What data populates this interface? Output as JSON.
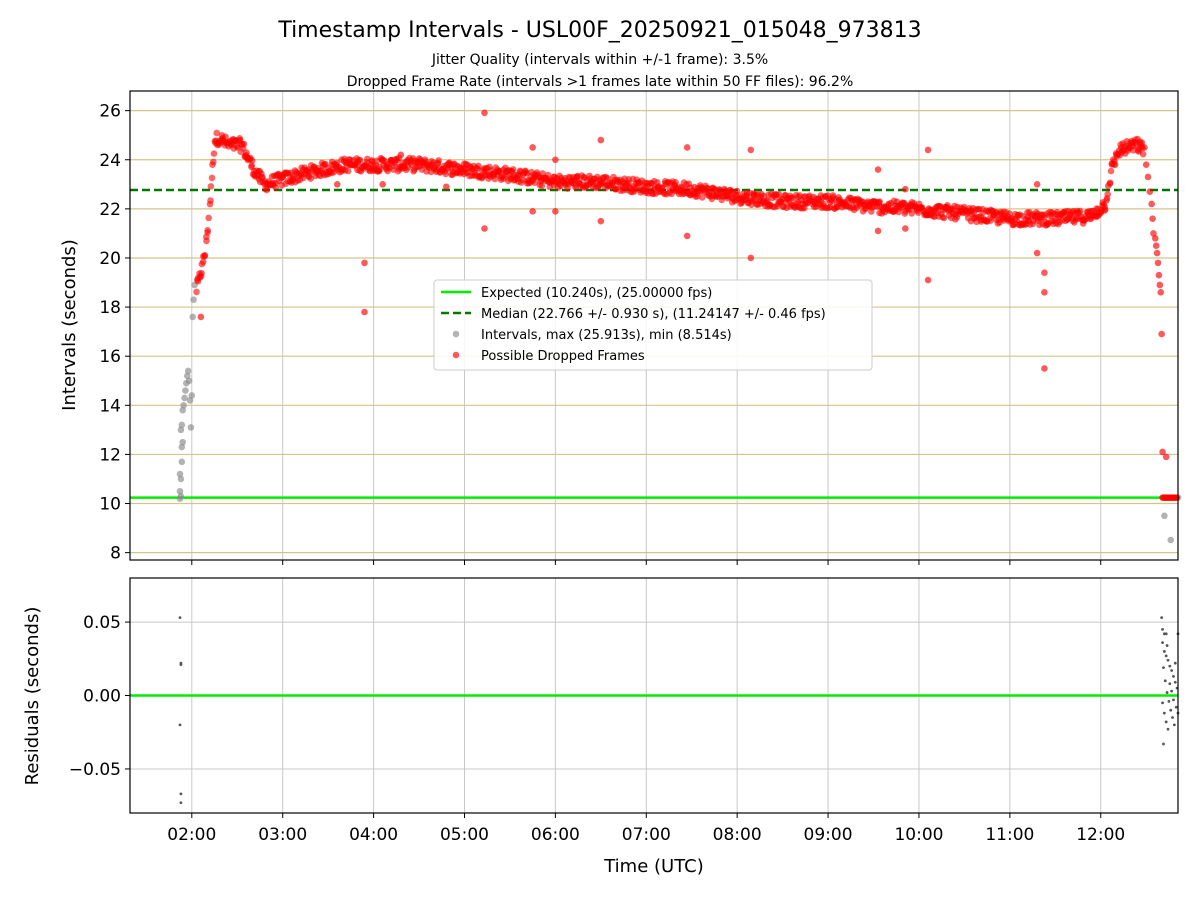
{
  "chart_data": {
    "type": "scatter",
    "title": "Timestamp Intervals - USL00F_20250921_015048_973813",
    "subtitles": [
      "Jitter Quality (intervals within +/-1 frame): 3.5%",
      "Dropped Frame Rate (intervals >1 frames late within 50 FF files): 96.2%"
    ],
    "xlabel": "Time (UTC)",
    "x_ticks": [
      "02:00",
      "03:00",
      "04:00",
      "05:00",
      "06:00",
      "07:00",
      "08:00",
      "09:00",
      "10:00",
      "11:00",
      "12:00"
    ],
    "xlim_hours": [
      1.32,
      12.85
    ],
    "top_panel": {
      "ylabel": "Intervals (seconds)",
      "ylim": [
        7.7,
        26.8
      ],
      "y_ticks": [
        "8",
        "10",
        "12",
        "14",
        "16",
        "18",
        "20",
        "22",
        "24",
        "26"
      ],
      "expected_interval": 10.24,
      "median_interval": 22.766,
      "legend": [
        {
          "label": "Expected (10.240s), (25.00000 fps)",
          "kind": "solid-line",
          "color": "#00ee00"
        },
        {
          "label": "Median (22.766 +/- 0.930 s), (11.24147 +/- 0.46 fps)",
          "kind": "dashed-line",
          "color": "#007700"
        },
        {
          "label": "Intervals, max (25.913s), min (8.514s)",
          "kind": "marker",
          "color": "#8a8a8a"
        },
        {
          "label": "Possible Dropped Frames",
          "kind": "marker",
          "color": "#ff0000"
        }
      ],
      "trend_points_hours_seconds": [
        [
          2.05,
          18.7
        ],
        [
          2.1,
          19.4
        ],
        [
          2.15,
          20.3
        ],
        [
          2.2,
          22.2
        ],
        [
          2.25,
          24.8
        ],
        [
          2.3,
          24.9
        ],
        [
          2.4,
          24.6
        ],
        [
          2.5,
          24.6
        ],
        [
          2.55,
          24.6
        ],
        [
          2.6,
          24.2
        ],
        [
          2.7,
          23.5
        ],
        [
          2.8,
          23.0
        ],
        [
          3.0,
          23.2
        ],
        [
          3.3,
          23.5
        ],
        [
          3.7,
          23.8
        ],
        [
          4.0,
          23.8
        ],
        [
          4.5,
          23.8
        ],
        [
          5.0,
          23.6
        ],
        [
          5.5,
          23.4
        ],
        [
          6.0,
          23.1
        ],
        [
          6.5,
          23.1
        ],
        [
          7.0,
          22.9
        ],
        [
          7.5,
          22.8
        ],
        [
          8.0,
          22.5
        ],
        [
          8.5,
          22.3
        ],
        [
          9.0,
          22.3
        ],
        [
          9.5,
          22.1
        ],
        [
          10.0,
          22.0
        ],
        [
          10.5,
          21.8
        ],
        [
          11.0,
          21.6
        ],
        [
          11.5,
          21.6
        ],
        [
          11.9,
          21.7
        ],
        [
          12.05,
          22.2
        ],
        [
          12.12,
          23.6
        ],
        [
          12.2,
          24.4
        ],
        [
          12.3,
          24.5
        ],
        [
          12.4,
          24.6
        ],
        [
          12.48,
          24.4
        ]
      ],
      "gray_points_hours_seconds": [
        [
          1.87,
          10.2
        ],
        [
          1.88,
          10.3
        ],
        [
          1.87,
          10.5
        ],
        [
          1.88,
          11.0
        ],
        [
          1.87,
          11.2
        ],
        [
          1.89,
          11.7
        ],
        [
          1.89,
          12.3
        ],
        [
          1.9,
          12.5
        ],
        [
          1.88,
          13.0
        ],
        [
          1.89,
          13.2
        ],
        [
          1.9,
          13.8
        ],
        [
          1.91,
          14.0
        ],
        [
          1.92,
          14.3
        ],
        [
          1.93,
          14.6
        ],
        [
          1.94,
          14.9
        ],
        [
          1.95,
          15.2
        ],
        [
          1.96,
          15.4
        ],
        [
          1.97,
          15.0
        ],
        [
          1.98,
          14.2
        ],
        [
          1.99,
          13.1
        ],
        [
          2.0,
          14.4
        ],
        [
          2.01,
          17.6
        ],
        [
          2.02,
          18.3
        ],
        [
          2.03,
          18.9
        ],
        [
          12.7,
          9.5
        ],
        [
          12.77,
          8.514
        ],
        [
          12.85,
          10.24
        ]
      ],
      "red_outliers_hours_seconds": [
        [
          2.1,
          17.6
        ],
        [
          3.9,
          19.8
        ],
        [
          3.9,
          17.8
        ],
        [
          5.22,
          25.913
        ],
        [
          5.22,
          21.2
        ],
        [
          5.75,
          24.5
        ],
        [
          5.75,
          21.9
        ],
        [
          6.0,
          24.0
        ],
        [
          6.0,
          21.9
        ],
        [
          6.5,
          24.8
        ],
        [
          6.5,
          21.5
        ],
        [
          7.45,
          24.5
        ],
        [
          7.45,
          20.9
        ],
        [
          8.15,
          24.4
        ],
        [
          8.15,
          20.0
        ],
        [
          9.55,
          23.6
        ],
        [
          9.55,
          21.1
        ],
        [
          9.85,
          22.8
        ],
        [
          9.85,
          21.2
        ],
        [
          10.1,
          24.4
        ],
        [
          10.1,
          19.1
        ],
        [
          11.3,
          23.0
        ],
        [
          11.3,
          20.2
        ],
        [
          11.38,
          19.4
        ],
        [
          11.38,
          18.6
        ],
        [
          11.38,
          15.5
        ],
        [
          3.6,
          23.0
        ],
        [
          4.1,
          23.0
        ],
        [
          4.3,
          24.2
        ],
        [
          4.8,
          22.9
        ]
      ],
      "red_descent_hours_seconds": [
        [
          12.5,
          23.8
        ],
        [
          12.52,
          23.3
        ],
        [
          12.54,
          22.7
        ],
        [
          12.56,
          22.2
        ],
        [
          12.57,
          21.6
        ],
        [
          12.58,
          21.0
        ],
        [
          12.6,
          20.8
        ],
        [
          12.61,
          20.5
        ],
        [
          12.62,
          20.2
        ],
        [
          12.63,
          19.8
        ],
        [
          12.64,
          19.3
        ],
        [
          12.65,
          18.9
        ],
        [
          12.66,
          18.6
        ],
        [
          12.67,
          16.9
        ],
        [
          12.68,
          12.1
        ],
        [
          12.72,
          11.9
        ]
      ],
      "red_baseline_hours_seconds": [
        12.68,
        12.84,
        10.24
      ]
    },
    "bottom_panel": {
      "ylabel": "Residuals (seconds)",
      "ylim": [
        -0.08,
        0.08
      ],
      "y_ticks": [
        "0.05",
        "0.00",
        "−0.05"
      ],
      "residual_line_value": 0.0,
      "points_hours_seconds": [
        [
          1.87,
          0.053
        ],
        [
          1.88,
          0.022
        ],
        [
          1.88,
          0.021
        ],
        [
          1.87,
          -0.02
        ],
        [
          1.88,
          -0.067
        ],
        [
          1.88,
          -0.073
        ],
        [
          12.67,
          0.053
        ],
        [
          12.68,
          0.045
        ],
        [
          12.7,
          0.042
        ],
        [
          12.72,
          0.042
        ],
        [
          12.68,
          0.036
        ],
        [
          12.7,
          0.03
        ],
        [
          12.72,
          0.027
        ],
        [
          12.74,
          0.024
        ],
        [
          12.76,
          0.02
        ],
        [
          12.78,
          0.017
        ],
        [
          12.8,
          0.013
        ],
        [
          12.82,
          0.009
        ],
        [
          12.84,
          0.005
        ],
        [
          12.69,
          0.019
        ],
        [
          12.71,
          0.01
        ],
        [
          12.73,
          0.002
        ],
        [
          12.75,
          -0.004
        ],
        [
          12.77,
          -0.01
        ],
        [
          12.79,
          -0.015
        ],
        [
          12.81,
          -0.02
        ],
        [
          12.83,
          -0.008
        ],
        [
          12.7,
          -0.012
        ],
        [
          12.72,
          -0.018
        ],
        [
          12.74,
          -0.023
        ],
        [
          12.69,
          -0.033
        ],
        [
          12.76,
          0.008
        ],
        [
          12.8,
          -0.003
        ],
        [
          12.82,
          0.022
        ],
        [
          12.68,
          -0.005
        ],
        [
          12.73,
          0.034
        ],
        [
          12.78,
          0.003
        ],
        [
          12.85,
          0.042
        ],
        [
          12.85,
          -0.012
        ]
      ]
    },
    "colors": {
      "expected": "#00ee00",
      "median": "#007700",
      "intervals": "#8a8a8a",
      "dropped": "#ff0000",
      "residual_points": "#555555",
      "grid_top": "#d4c48a",
      "grid_vertical": "#c8c8c8",
      "grid_bottom": "#c8c8c8"
    }
  }
}
